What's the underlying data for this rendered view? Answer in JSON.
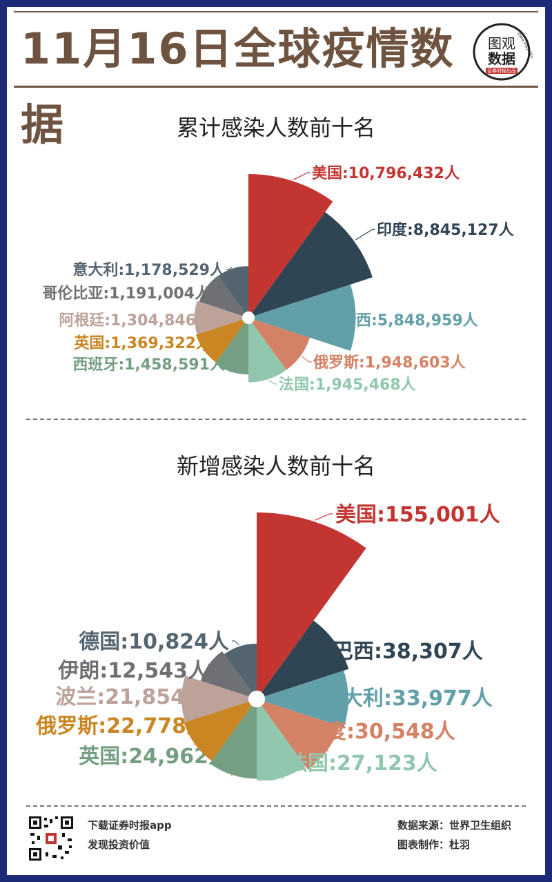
{
  "header": {
    "title": "11月16日全球疫情数据",
    "logo_line1": "图观",
    "logo_line2": "数据",
    "logo_ring": "Data Visualization",
    "logo_tag": "证券时报出品"
  },
  "sections": {
    "cumulative_title": "累计感染人数前十名",
    "new_title": "新增感染人数前十名"
  },
  "colors": {
    "red": "#c23531",
    "navy": "#2f4554",
    "teal": "#61a0a8",
    "salmon": "#d48265",
    "mint": "#91c7ae",
    "olive": "#749f83",
    "orange": "#ca8622",
    "rose": "#bda29a",
    "slate": "#6e7074",
    "steel": "#546570",
    "brown": "#6e5440",
    "background": "#1d2a78"
  },
  "chart_data": [
    {
      "type": "pie",
      "variant": "rose",
      "title": "累计感染人数前十名",
      "categories": [
        "美国",
        "印度",
        "巴西",
        "俄罗斯",
        "法国",
        "西班牙",
        "英国",
        "阿根廷",
        "哥伦比亚",
        "意大利"
      ],
      "values": [
        10796432,
        8845127,
        5848959,
        1948603,
        1945468,
        1458591,
        1369322,
        1304846,
        1191004,
        1178529
      ],
      "labels": [
        "美国:10,796,432人",
        "印度:8,845,127人",
        "巴西:5,848,959人",
        "俄罗斯:1,948,603人",
        "法国:1,945,468人",
        "西班牙:1,458,591人",
        "英国:1,369,322人",
        "阿根廷:1,304,846人",
        "哥伦比亚:1,191,004人",
        "意大利:1,178,529人"
      ]
    },
    {
      "type": "pie",
      "variant": "rose",
      "title": "新增感染人数前十名",
      "categories": [
        "美国",
        "巴西",
        "意大利",
        "印度",
        "法国",
        "英国",
        "俄罗斯",
        "波兰",
        "伊朗",
        "德国"
      ],
      "values": [
        155001,
        38307,
        33977,
        30548,
        27123,
        24962,
        22778,
        21854,
        12543,
        10824
      ],
      "labels": [
        "美国:155,001人",
        "巴西:38,307人",
        "意大利:33,977人",
        "印度:30,548人",
        "法国:27,123人",
        "英国:24,962人",
        "俄罗斯:22,778人",
        "波兰:21,854人",
        "伊朗:12,543人",
        "德国:10,824人"
      ]
    }
  ],
  "footer": {
    "app_line1": "下载证券时报app",
    "app_line2": "发现投资价值",
    "source": "数据来源：世界卫生组织",
    "author": "图表制作：杜羽"
  }
}
